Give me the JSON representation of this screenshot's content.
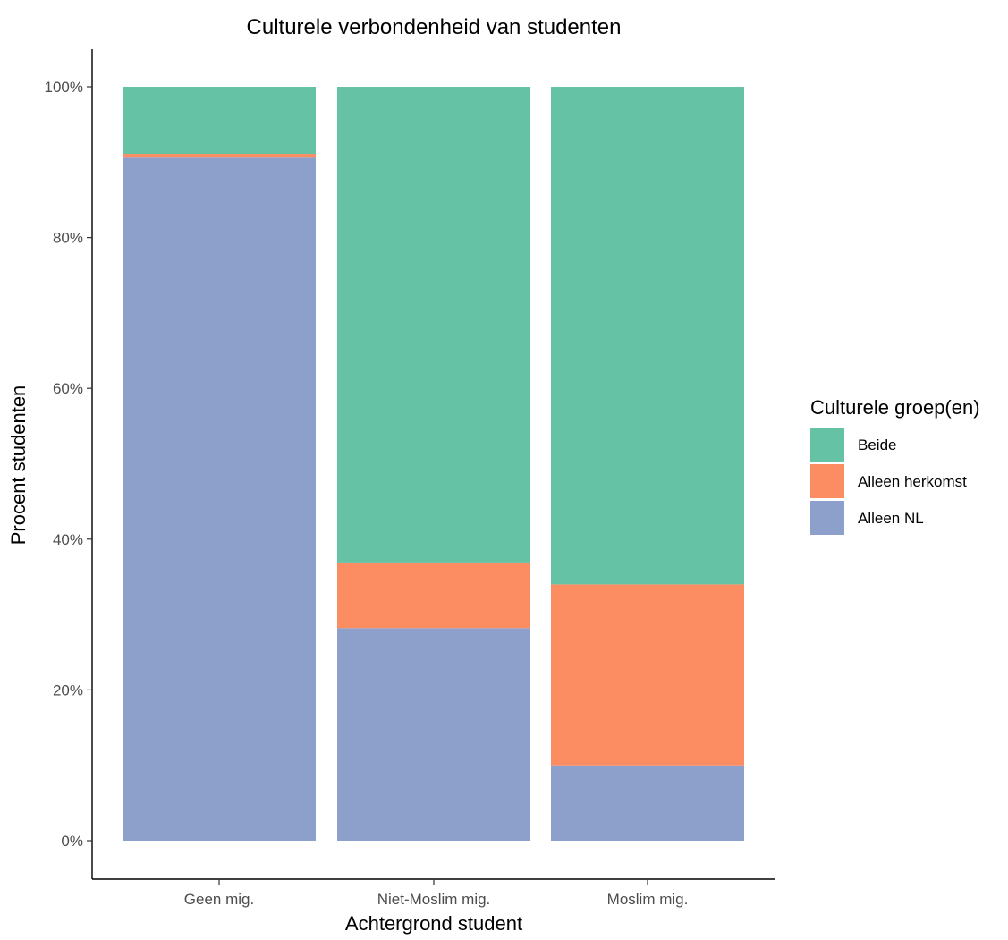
{
  "chart_data": {
    "type": "bar",
    "stacked": true,
    "percent": true,
    "title": "Culturele verbondenheid van studenten",
    "xlabel": "Achtergrond student",
    "ylabel": "Procent studenten",
    "ylim": [
      0,
      100
    ],
    "yticks": [
      0,
      20,
      40,
      60,
      80,
      100
    ],
    "ytick_labels": [
      "0%",
      "20%",
      "40%",
      "60%",
      "80%",
      "100%"
    ],
    "categories": [
      "Geen mig.",
      "Niet-Moslim mig.",
      "Moslim mig."
    ],
    "grid": false,
    "legend": {
      "title": "Culturele groep(en)",
      "placement": "right"
    },
    "series": [
      {
        "name": "Alleen NL",
        "color": "#8DA0CB",
        "values": [
          90.6,
          28.2,
          10.0
        ]
      },
      {
        "name": "Alleen herkomst",
        "color": "#FC8D62",
        "values": [
          0.5,
          8.7,
          24.0
        ]
      },
      {
        "name": "Beide",
        "color": "#66C2A5",
        "values": [
          8.9,
          63.1,
          66.0
        ]
      }
    ],
    "legend_order": [
      "Beide",
      "Alleen herkomst",
      "Alleen NL"
    ]
  }
}
